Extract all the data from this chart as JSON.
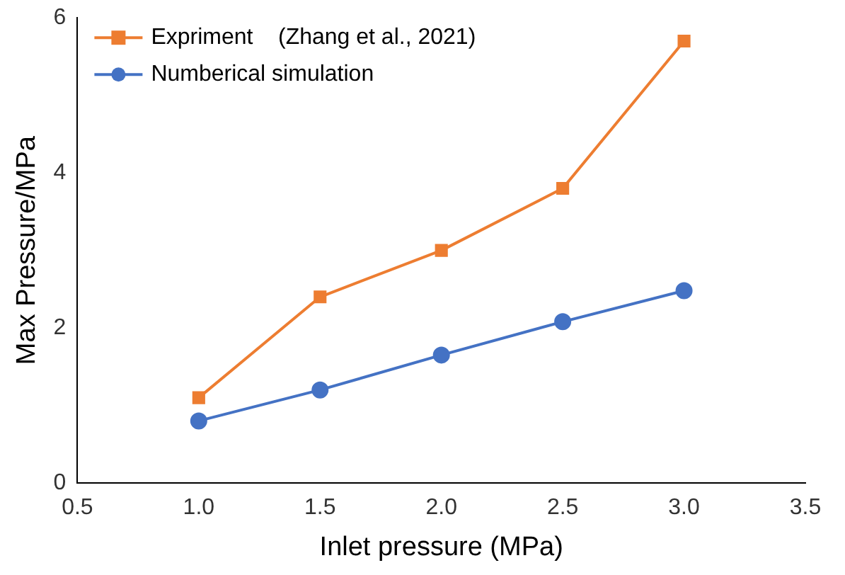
{
  "chart_data": {
    "type": "line",
    "xlabel": "Inlet pressure (MPa)",
    "ylabel": "Max Pressure/MPa",
    "x": [
      1.0,
      1.5,
      2.0,
      2.5,
      3.0
    ],
    "series": [
      {
        "name": "Expriment    (Zhang et al., 2021)",
        "color": "#ed7d31",
        "marker": "square",
        "values": [
          1.1,
          2.4,
          3.0,
          3.8,
          5.7
        ]
      },
      {
        "name": "Numberical simulation",
        "color": "#4472c4",
        "marker": "circle",
        "values": [
          0.8,
          1.2,
          1.65,
          2.08,
          2.48
        ]
      }
    ],
    "xlim": [
      0.5,
      3.5
    ],
    "xticks": [
      {
        "value": 0.5,
        "label": "0.5"
      },
      {
        "value": 1.0,
        "label": "1.0"
      },
      {
        "value": 1.5,
        "label": "1.5"
      },
      {
        "value": 2.0,
        "label": "2.0"
      },
      {
        "value": 2.5,
        "label": "2.5"
      },
      {
        "value": 3.0,
        "label": "3.0"
      },
      {
        "value": 3.5,
        "label": "3.5"
      }
    ],
    "ylim": [
      0,
      6
    ],
    "yticks": [
      0,
      2,
      4,
      6
    ],
    "grid": false,
    "legend": "top left"
  }
}
